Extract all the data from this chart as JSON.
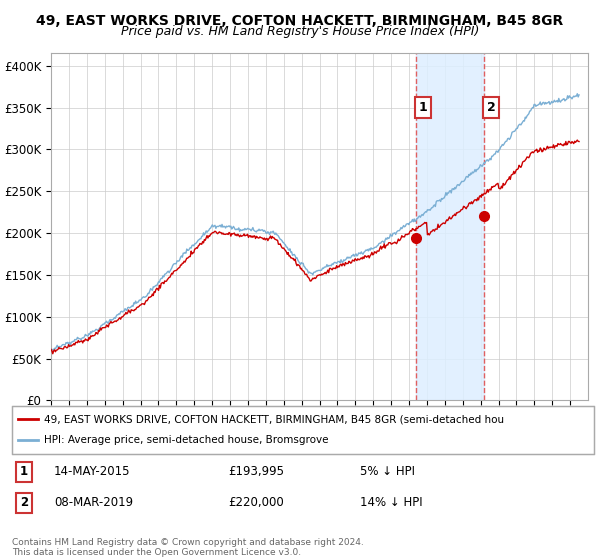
{
  "title_line1": "49, EAST WORKS DRIVE, COFTON HACKETT, BIRMINGHAM, B45 8GR",
  "title_line2": "Price paid vs. HM Land Registry's House Price Index (HPI)",
  "ylabel_ticks": [
    "£0",
    "£50K",
    "£100K",
    "£150K",
    "£200K",
    "£250K",
    "£300K",
    "£350K",
    "£400K"
  ],
  "ytick_values": [
    0,
    50000,
    100000,
    150000,
    200000,
    250000,
    300000,
    350000,
    400000
  ],
  "ylim": [
    0,
    415000
  ],
  "xlim_start": 1995.0,
  "xlim_end": 2025.0,
  "sale1_date": 2015.37,
  "sale1_price": 193995,
  "sale1_label": "1",
  "sale2_date": 2019.18,
  "sale2_price": 220000,
  "sale2_label": "2",
  "hpi_color": "#7bafd4",
  "price_color": "#cc0000",
  "sale_marker_color": "#cc0000",
  "vline_color": "#e06060",
  "shade_color": "#ddeeff",
  "legend_line1": "49, EAST WORKS DRIVE, COFTON HACKETT, BIRMINGHAM, B45 8GR (semi-detached hou",
  "legend_line2": "HPI: Average price, semi-detached house, Bromsgrove",
  "note1_label": "1",
  "note1_date": "14-MAY-2015",
  "note1_price": "£193,995",
  "note1_pct": "5% ↓ HPI",
  "note2_label": "2",
  "note2_date": "08-MAR-2019",
  "note2_price": "£220,000",
  "note2_pct": "14% ↓ HPI",
  "footer": "Contains HM Land Registry data © Crown copyright and database right 2024.\nThis data is licensed under the Open Government Licence v3.0.",
  "background_color": "#ffffff",
  "grid_color": "#cccccc"
}
